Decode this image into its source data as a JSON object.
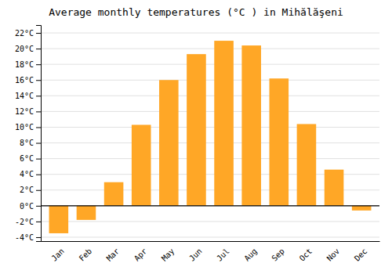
{
  "chart_data": {
    "type": "bar",
    "title": "Average monthly temperatures (°C ) in Mihălăşeni",
    "categories": [
      "Jan",
      "Feb",
      "Mar",
      "Apr",
      "May",
      "Jun",
      "Jul",
      "Aug",
      "Sep",
      "Oct",
      "Nov",
      "Dec"
    ],
    "values": [
      -3.5,
      -1.8,
      3.0,
      10.3,
      16.0,
      19.3,
      21.0,
      20.4,
      16.2,
      10.4,
      4.6,
      -0.6
    ],
    "color": "#FFA726",
    "ylim": [
      -4.5,
      23
    ],
    "yticks": [
      {
        "value": -4,
        "label": "-4°C"
      },
      {
        "value": -2,
        "label": "-2°C"
      },
      {
        "value": 0,
        "label": "0°C"
      },
      {
        "value": 2,
        "label": "2°C"
      },
      {
        "value": 4,
        "label": "4°C"
      },
      {
        "value": 6,
        "label": "6°C"
      },
      {
        "value": 8,
        "label": "8°C"
      },
      {
        "value": 10,
        "label": "10°C"
      },
      {
        "value": 12,
        "label": "12°C"
      },
      {
        "value": 14,
        "label": "14°C"
      },
      {
        "value": 16,
        "label": "16°C"
      },
      {
        "value": 18,
        "label": "18°C"
      },
      {
        "value": 20,
        "label": "20°C"
      },
      {
        "value": 22,
        "label": "22°C"
      }
    ],
    "grid": true
  }
}
